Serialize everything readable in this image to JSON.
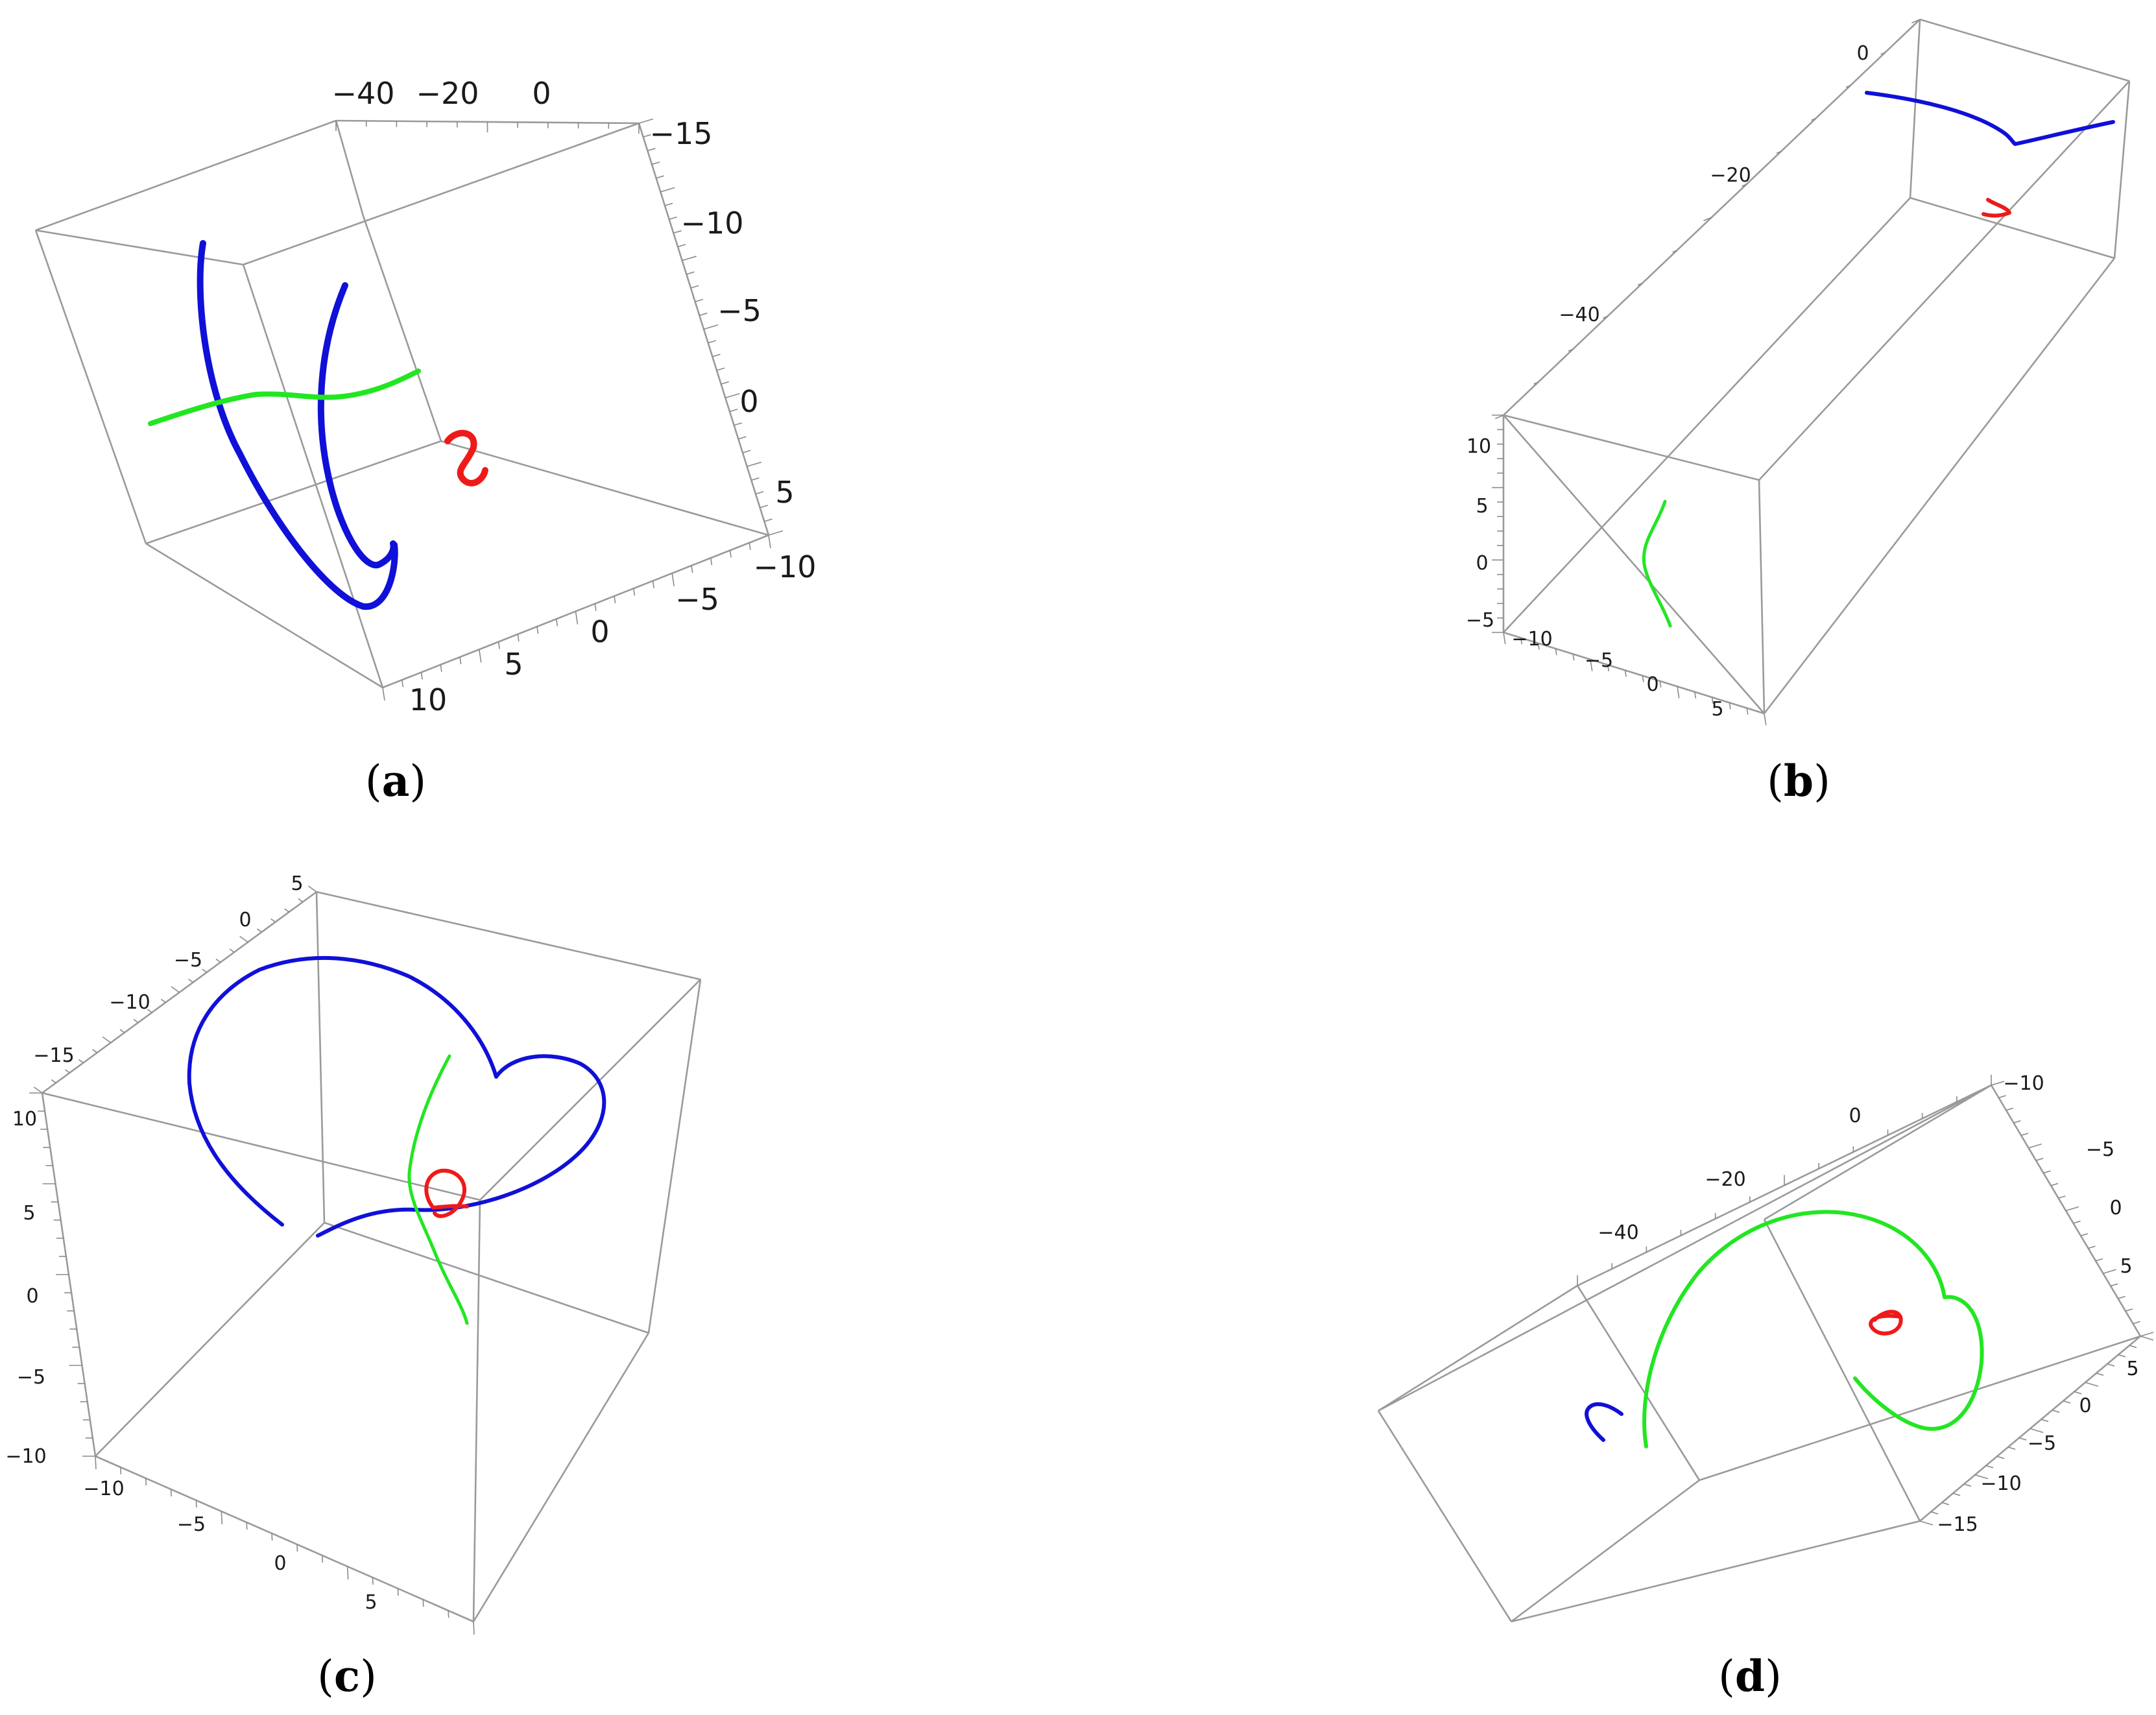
{
  "chart_data": [
    {
      "panel": "(a)",
      "type": "line3d",
      "caption": {
        "open": "(",
        "letter": "a",
        "close": ")"
      },
      "colors": {
        "blue": "#1010d8",
        "green": "#22e622",
        "red": "#ee1a1a"
      },
      "axes": {
        "top": {
          "ticks": [
            "−40",
            "−20",
            "0"
          ]
        },
        "right": {
          "ticks": [
            "−15",
            "−10",
            "−5",
            "0",
            "5"
          ]
        },
        "front": {
          "ticks": [
            "−10",
            "−5",
            "0",
            "5",
            "10"
          ]
        }
      }
    },
    {
      "panel": "(b)",
      "type": "line3d",
      "caption": {
        "open": "(",
        "letter": "b",
        "close": ")"
      },
      "colors": {
        "blue": "#1010d8",
        "green": "#22e622",
        "red": "#ee1a1a"
      },
      "axes": {
        "top": {
          "ticks": [
            "0",
            "−20",
            "−40"
          ]
        },
        "left": {
          "ticks": [
            "10",
            "5",
            "0",
            "−5"
          ]
        },
        "front": {
          "ticks": [
            "−10",
            "−5",
            "0",
            "5"
          ]
        }
      }
    },
    {
      "panel": "(c)",
      "type": "line3d",
      "caption": {
        "open": "(",
        "letter": "c",
        "close": ")"
      },
      "colors": {
        "blue": "#1010d8",
        "green": "#22e622",
        "red": "#ee1a1a"
      },
      "axes": {
        "top": {
          "ticks": [
            "5",
            "0",
            "−5",
            "−10",
            "−15"
          ]
        },
        "left": {
          "ticks": [
            "10",
            "5",
            "0",
            "−5",
            "−10"
          ]
        },
        "front": {
          "ticks": [
            "−10",
            "−5",
            "0",
            "5"
          ]
        }
      }
    },
    {
      "panel": "(d)",
      "type": "line3d",
      "caption": {
        "open": "(",
        "letter": "d",
        "close": ")"
      },
      "colors": {
        "blue": "#1010d8",
        "green": "#22e622",
        "red": "#ee1a1a"
      },
      "axes": {
        "top": {
          "ticks": [
            "−40",
            "−20",
            "0"
          ]
        },
        "right": {
          "ticks": [
            "−10",
            "−5",
            "0",
            "5"
          ]
        },
        "front": {
          "ticks": [
            "5",
            "0",
            "−5",
            "−10",
            "−15"
          ]
        }
      }
    }
  ]
}
